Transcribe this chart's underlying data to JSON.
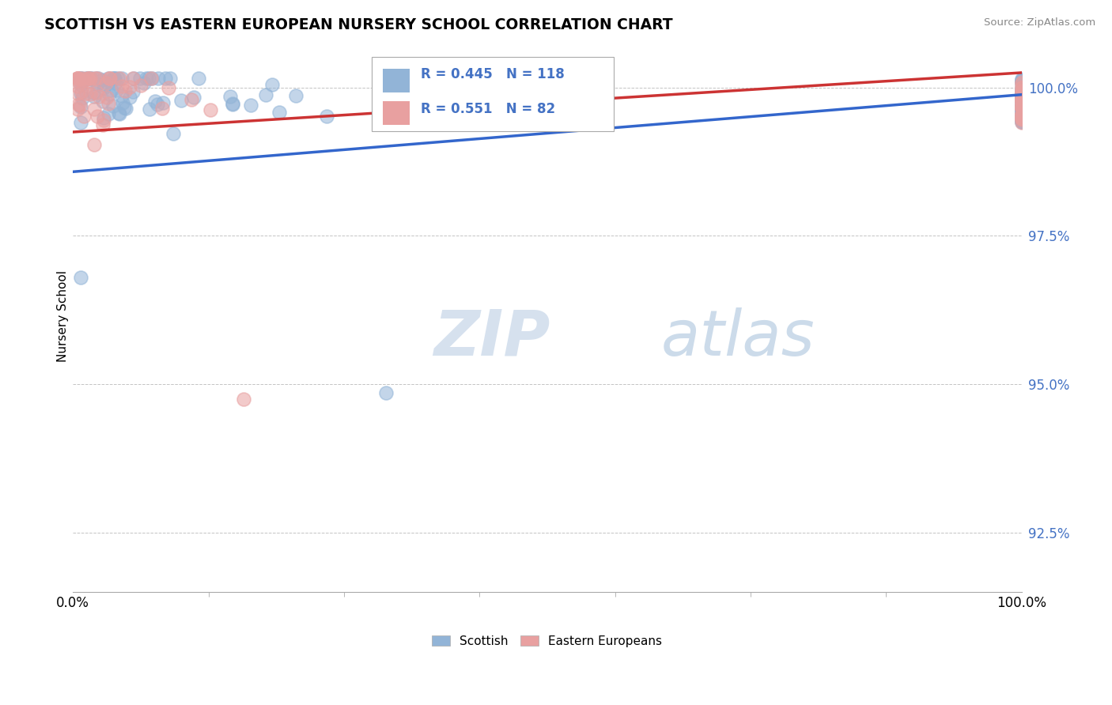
{
  "title": "SCOTTISH VS EASTERN EUROPEAN NURSERY SCHOOL CORRELATION CHART",
  "source": "Source: ZipAtlas.com",
  "ylabel": "Nursery School",
  "yticks": [
    92.5,
    95.0,
    97.5,
    100.0
  ],
  "ytick_labels": [
    "92.5%",
    "95.0%",
    "97.5%",
    "100.0%"
  ],
  "xmin": 0.0,
  "xmax": 100.0,
  "ymin": 91.5,
  "ymax": 100.8,
  "blue_color": "#92b4d7",
  "pink_color": "#e8a0a0",
  "blue_line_color": "#3366cc",
  "pink_line_color": "#cc3333",
  "legend_R_blue": "R = 0.445",
  "legend_N_blue": "N = 118",
  "legend_R_pink": "R = 0.551",
  "legend_N_pink": "N = 82",
  "watermark_zip": "ZIP",
  "watermark_atlas": "atlas",
  "background_color": "#ffffff",
  "grid_color": "#aaaaaa",
  "blue_line_y0": 98.58,
  "blue_line_y1": 99.88,
  "pink_line_y0": 99.25,
  "pink_line_y1": 100.25
}
